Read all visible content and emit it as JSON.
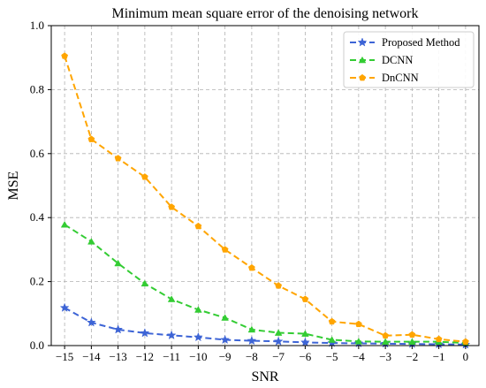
{
  "chart_data": {
    "type": "line",
    "title": "Minimum mean square error of the denoising network",
    "xlabel": "SNR",
    "ylabel": "MSE",
    "x": [
      -15,
      -14,
      -13,
      -12,
      -11,
      -10,
      -9,
      -8,
      -7,
      -6,
      -5,
      -4,
      -3,
      -2,
      -1,
      0
    ],
    "x_tick_labels": [
      "−15",
      "−14",
      "−13",
      "−12",
      "−11",
      "−10",
      "−9",
      "−8",
      "−7",
      "−6",
      "−5",
      "−4",
      "−3",
      "−2",
      "−1",
      "0"
    ],
    "y_ticks": [
      0.0,
      0.2,
      0.4,
      0.6,
      0.8,
      1.0
    ],
    "y_tick_labels": [
      "0.0",
      "0.2",
      "0.4",
      "0.6",
      "0.8",
      "1.0"
    ],
    "xlim": [
      -15.5,
      0.5
    ],
    "ylim": [
      0,
      1.0
    ],
    "grid": true,
    "legend_position": "top-right",
    "series": [
      {
        "name": "Proposed Method",
        "color": "#3d64d6",
        "marker": "star",
        "line_style": "dashed",
        "values": [
          0.118,
          0.072,
          0.05,
          0.039,
          0.032,
          0.026,
          0.018,
          0.015,
          0.013,
          0.01,
          0.008,
          0.007,
          0.006,
          0.005,
          0.004,
          0.003
        ]
      },
      {
        "name": "DCNN",
        "color": "#33cc33",
        "marker": "triangle",
        "line_style": "dashed",
        "values": [
          0.378,
          0.325,
          0.257,
          0.194,
          0.145,
          0.112,
          0.087,
          0.05,
          0.04,
          0.037,
          0.018,
          0.013,
          0.012,
          0.012,
          0.012,
          0.008
        ]
      },
      {
        "name": "DnCNN",
        "color": "#ffa500",
        "marker": "pentagon",
        "line_style": "dashed",
        "values": [
          0.905,
          0.645,
          0.585,
          0.527,
          0.433,
          0.373,
          0.3,
          0.243,
          0.187,
          0.145,
          0.075,
          0.067,
          0.031,
          0.034,
          0.02,
          0.012
        ]
      }
    ]
  }
}
